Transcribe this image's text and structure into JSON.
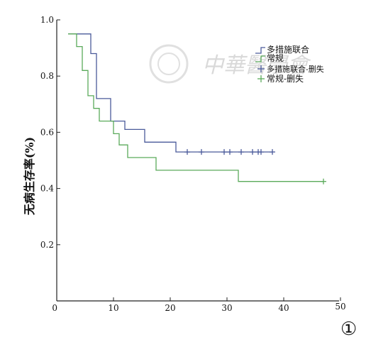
{
  "watermark": {
    "text": "中華醫學會"
  },
  "panel_label": "①",
  "chart_data": {
    "type": "line",
    "subtype": "kaplan-meier step",
    "ylabel": "无病生存率(%)",
    "xlabel": "",
    "xlim": [
      0,
      50
    ],
    "ylim": [
      0,
      1.0
    ],
    "x_ticks": [
      0,
      10,
      20,
      30,
      40,
      50
    ],
    "y_ticks": [
      0.2,
      0.4,
      0.6,
      0.8,
      1.0
    ],
    "x_tick_labels": [
      "0",
      "10",
      "20",
      "30",
      "40",
      "50"
    ],
    "y_tick_labels": [
      "0.2",
      "0.4",
      "0.6",
      "0.8",
      "1.0"
    ],
    "grid": false,
    "legend_position": "top-right",
    "legend": [
      {
        "label": "多措施联合",
        "kind": "line",
        "color": "#4a5a9a"
      },
      {
        "label": "常规",
        "kind": "line",
        "color": "#5aaa5a"
      },
      {
        "label": "多措施联合-删失",
        "kind": "marker",
        "color": "#4a5a9a"
      },
      {
        "label": "常规-删失",
        "kind": "marker",
        "color": "#5aaa5a"
      }
    ],
    "series": [
      {
        "name": "多措施联合",
        "color": "#4a5a9a",
        "steps": [
          [
            2,
            0.95
          ],
          [
            6,
            0.95
          ],
          [
            6,
            0.88
          ],
          [
            7,
            0.88
          ],
          [
            7,
            0.72
          ],
          [
            9.5,
            0.72
          ],
          [
            9.5,
            0.64
          ],
          [
            12,
            0.64
          ],
          [
            12,
            0.61
          ],
          [
            15.5,
            0.61
          ],
          [
            15.5,
            0.565
          ],
          [
            21,
            0.565
          ],
          [
            21,
            0.53
          ],
          [
            38,
            0.53
          ]
        ],
        "censored": [
          23,
          25.5,
          29.5,
          30.5,
          32.5,
          34.5,
          35.5,
          36,
          38
        ]
      },
      {
        "name": "常规",
        "color": "#5aaa5a",
        "steps": [
          [
            2,
            0.95
          ],
          [
            3.5,
            0.95
          ],
          [
            3.5,
            0.905
          ],
          [
            4.5,
            0.905
          ],
          [
            4.5,
            0.82
          ],
          [
            5.5,
            0.82
          ],
          [
            5.5,
            0.73
          ],
          [
            6.5,
            0.73
          ],
          [
            6.5,
            0.685
          ],
          [
            7.5,
            0.685
          ],
          [
            7.5,
            0.64
          ],
          [
            10,
            0.64
          ],
          [
            10,
            0.595
          ],
          [
            11,
            0.595
          ],
          [
            11,
            0.555
          ],
          [
            12.5,
            0.555
          ],
          [
            12.5,
            0.51
          ],
          [
            17.5,
            0.51
          ],
          [
            17.5,
            0.465
          ],
          [
            32,
            0.465
          ],
          [
            32,
            0.425
          ],
          [
            47,
            0.425
          ]
        ],
        "censored": [
          47
        ]
      }
    ]
  }
}
